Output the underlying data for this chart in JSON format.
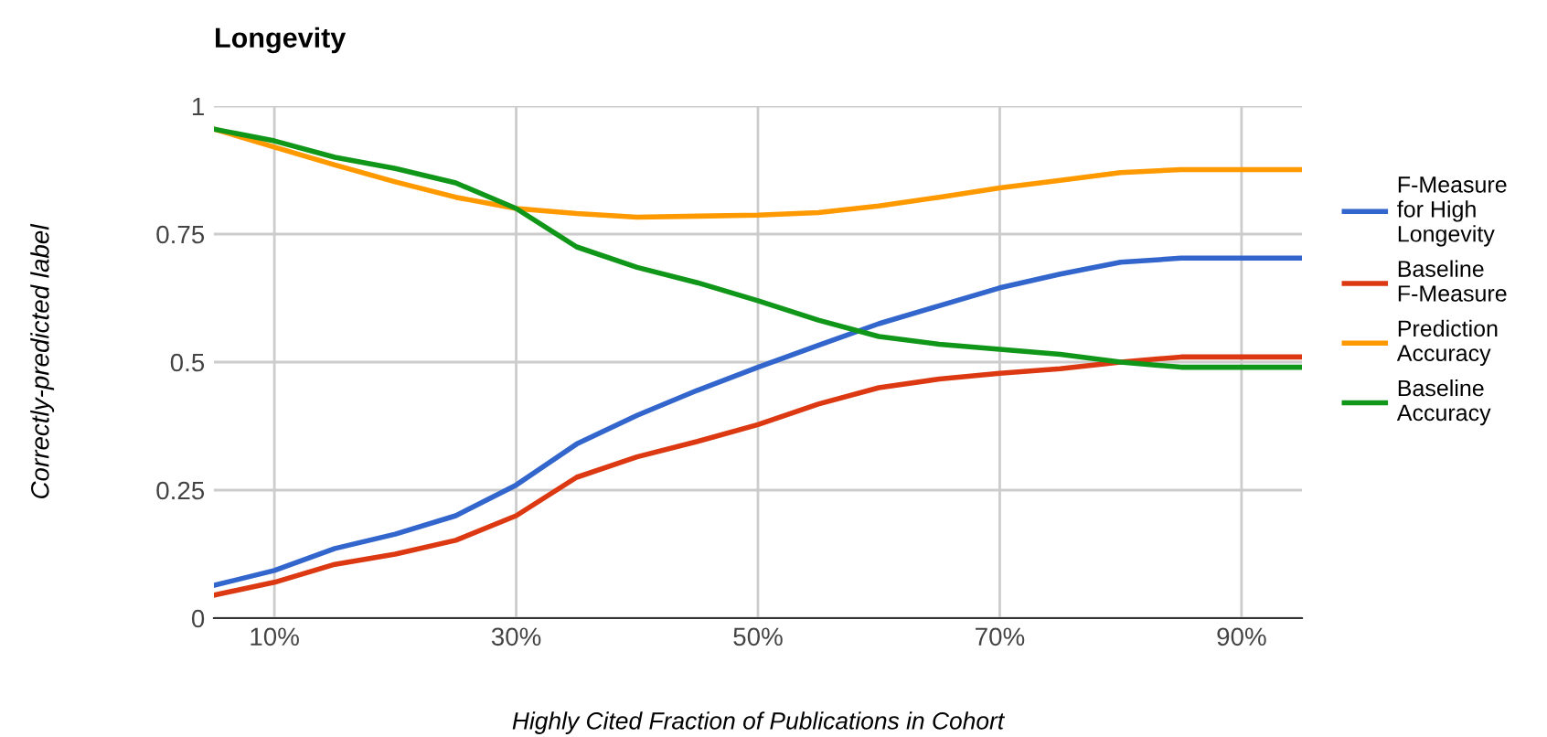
{
  "chart_data": {
    "type": "line",
    "title": "Longevity",
    "xlabel": "Highly Cited Fraction of Publications in Cohort",
    "ylabel": "Correctly-predicted label",
    "x": [
      5,
      10,
      15,
      20,
      25,
      30,
      35,
      40,
      45,
      50,
      55,
      60,
      65,
      70,
      75,
      80,
      85,
      90,
      95
    ],
    "series": [
      {
        "name": "F-Measure for High Longevity",
        "color": "#3366cc",
        "values": [
          0.064,
          0.093,
          0.136,
          0.164,
          0.2,
          0.26,
          0.34,
          0.396,
          0.445,
          0.49,
          0.533,
          0.575,
          0.61,
          0.645,
          0.672,
          0.695,
          0.703,
          0.703,
          0.703
        ]
      },
      {
        "name": "Baseline F-Measure",
        "color": "#dc3912",
        "values": [
          0.045,
          0.07,
          0.105,
          0.125,
          0.152,
          0.2,
          0.275,
          0.315,
          0.345,
          0.378,
          0.418,
          0.45,
          0.467,
          0.478,
          0.487,
          0.5,
          0.51,
          0.51,
          0.51
        ]
      },
      {
        "name": "Prediction Accuracy",
        "color": "#ff9900",
        "values": [
          0.955,
          0.92,
          0.885,
          0.852,
          0.822,
          0.8,
          0.79,
          0.783,
          0.785,
          0.787,
          0.792,
          0.805,
          0.822,
          0.84,
          0.855,
          0.87,
          0.876,
          0.876,
          0.876
        ]
      },
      {
        "name": "Baseline Accuracy",
        "color": "#109618",
        "values": [
          0.955,
          0.932,
          0.9,
          0.878,
          0.85,
          0.8,
          0.725,
          0.685,
          0.655,
          0.62,
          0.582,
          0.55,
          0.535,
          0.525,
          0.515,
          0.5,
          0.49,
          0.49,
          0.49
        ]
      }
    ],
    "xlim": [
      5,
      95
    ],
    "xticks": [
      {
        "value": 10,
        "label": "10%"
      },
      {
        "value": 30,
        "label": "30%"
      },
      {
        "value": 50,
        "label": "50%"
      },
      {
        "value": 70,
        "label": "70%"
      },
      {
        "value": 90,
        "label": "90%"
      }
    ],
    "ylim": [
      0,
      1
    ],
    "yticks": [
      0,
      0.25,
      0.5,
      0.75,
      1
    ],
    "grid": true,
    "legend": "right",
    "marker": "none",
    "line_style": "solid"
  }
}
